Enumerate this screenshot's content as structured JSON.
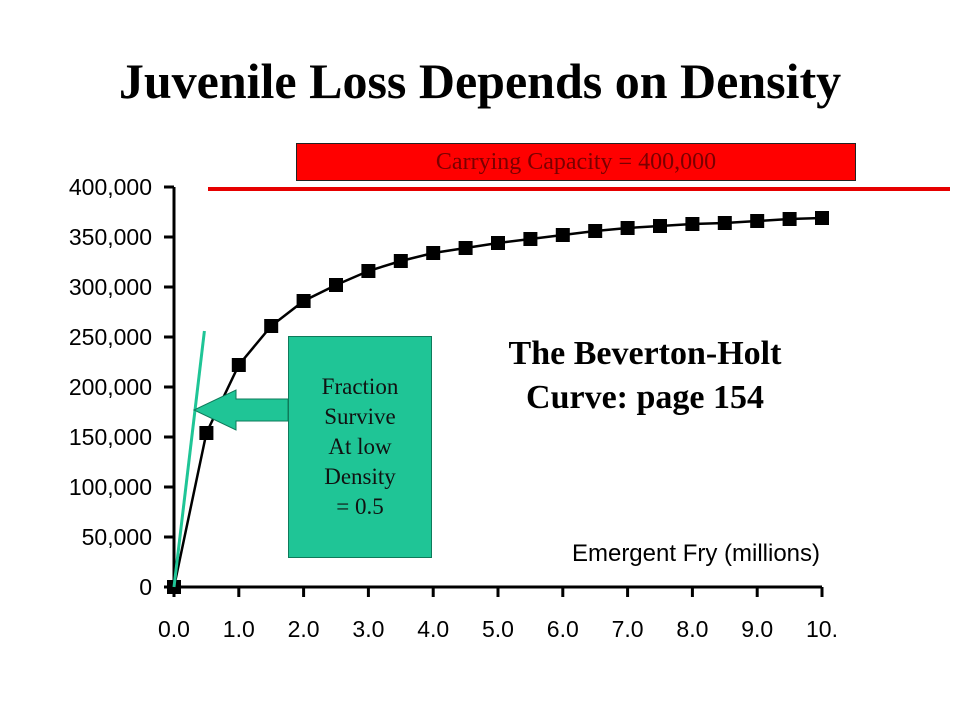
{
  "slide": {
    "title": "Juvenile Loss Depends on Density"
  },
  "carrying_capacity_label": "Carrying Capacity = 400,000",
  "fraction_box": {
    "lines": [
      "Fraction",
      "Survive",
      "At low",
      "Density",
      "= 0.5"
    ]
  },
  "curve_label": {
    "lines": [
      "The Beverton-Holt",
      "Curve: page 154"
    ]
  },
  "colors": {
    "capacity_line": "#e60000",
    "capacity_box": "#ff0000",
    "arrow_fill": "#1fc596",
    "slope_line": "#1fc596",
    "series": "#000000"
  },
  "chart_data": {
    "type": "line",
    "title": "",
    "xlabel": "Emergent Fry (millions)",
    "ylabel": "",
    "xlim": [
      0,
      10
    ],
    "ylim": [
      0,
      400000
    ],
    "x_tick_labels": [
      "0.0",
      "1.0",
      "2.0",
      "3.0",
      "4.0",
      "5.0",
      "6.0",
      "7.0",
      "8.0",
      "9.0",
      "10."
    ],
    "x_ticks": [
      0,
      1,
      2,
      3,
      4,
      5,
      6,
      7,
      8,
      9,
      10
    ],
    "y_tick_labels": [
      "0",
      "50,000",
      "100,000",
      "150,000",
      "200,000",
      "250,000",
      "300,000",
      "350,000",
      "400,000"
    ],
    "y_ticks": [
      0,
      50000,
      100000,
      150000,
      200000,
      250000,
      300000,
      350000,
      400000
    ],
    "grid": false,
    "series": [
      {
        "marker": "square",
        "x": [
          0,
          0.5,
          1.0,
          1.5,
          2.0,
          2.5,
          3.0,
          3.5,
          4.0,
          4.5,
          5.0,
          5.5,
          6.0,
          6.5,
          7.0,
          7.5,
          8.0,
          8.5,
          9.0,
          9.5,
          10.0
        ],
        "y": [
          0,
          154000,
          222000,
          261000,
          286000,
          302000,
          316000,
          326000,
          334000,
          339000,
          344000,
          348000,
          352000,
          356000,
          359000,
          361000,
          363000,
          364000,
          366000,
          368000,
          369000
        ]
      }
    ],
    "reference_lines": [
      {
        "type": "horizontal",
        "y": 400000
      },
      {
        "type": "slope",
        "x": [
          0,
          0.5
        ],
        "y": [
          0,
          250000
        ]
      }
    ]
  }
}
